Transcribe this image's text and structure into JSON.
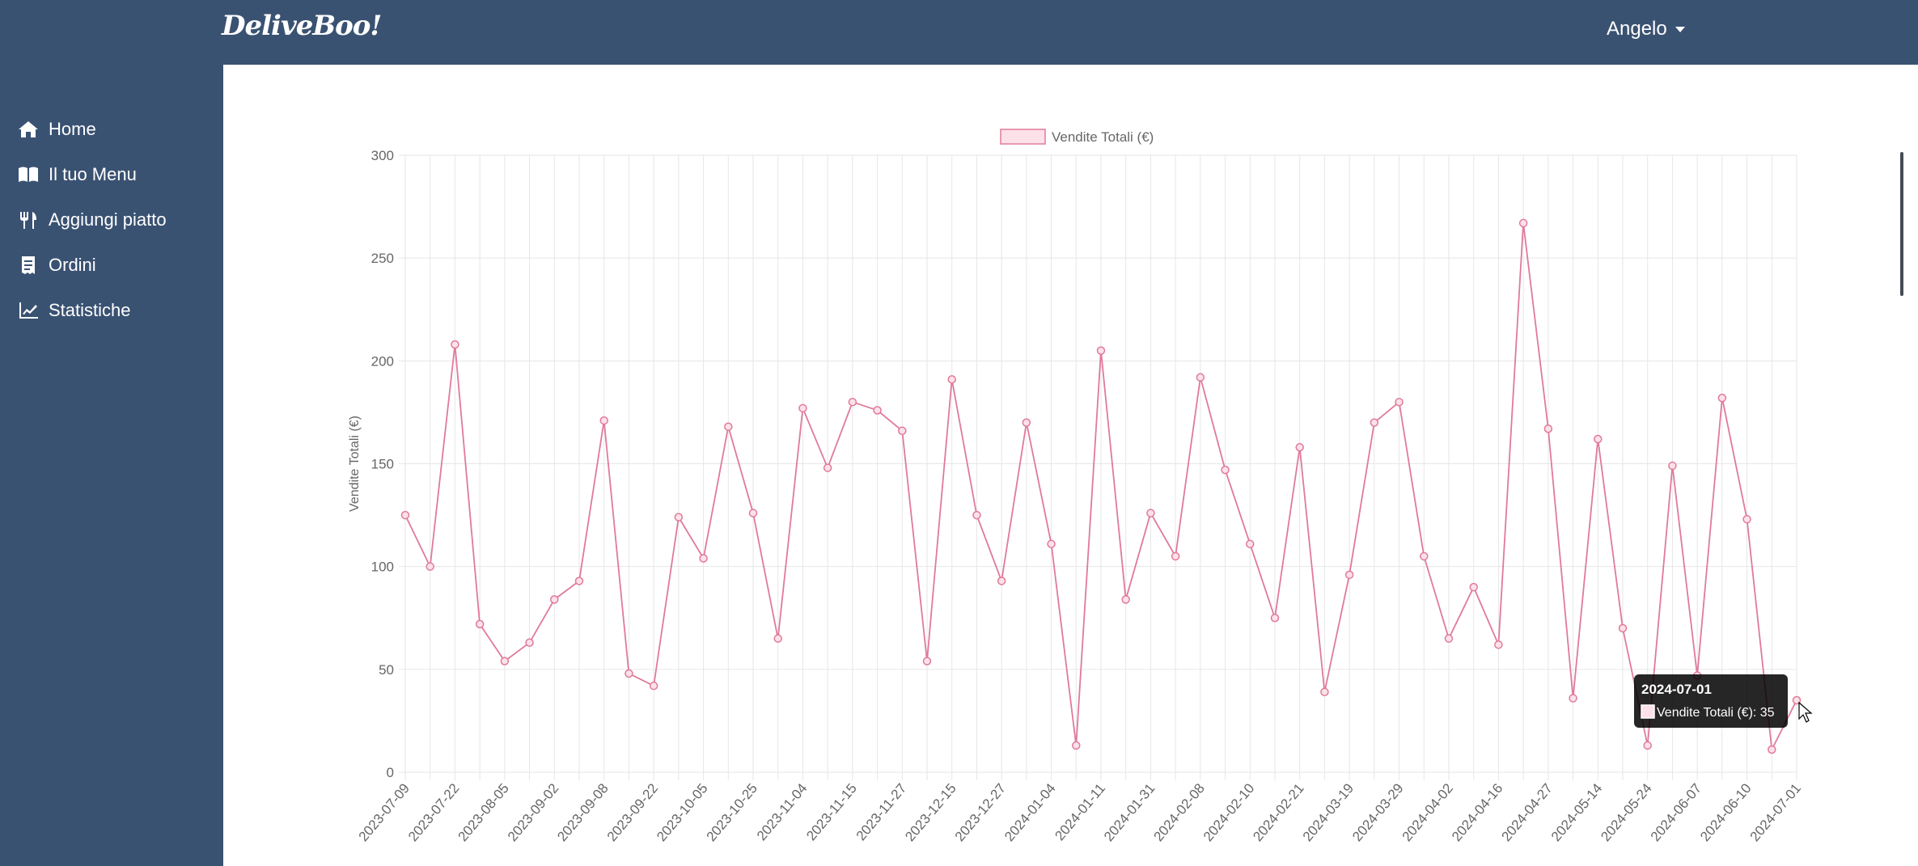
{
  "app": {
    "brand": "DeliveBoo!",
    "user_name": "Angelo"
  },
  "sidebar": {
    "items": [
      {
        "label": "Home",
        "icon": "home-icon"
      },
      {
        "label": "Il tuo Menu",
        "icon": "book-icon"
      },
      {
        "label": "Aggiungi piatto",
        "icon": "utensils-icon"
      },
      {
        "label": "Ordini",
        "icon": "receipt-icon"
      },
      {
        "label": "Statistiche",
        "icon": "chart-line-icon"
      }
    ]
  },
  "colors": {
    "nav_bg": "#3a5272",
    "series_line": "#e07a9a",
    "series_fill": "#fde1e8",
    "tooltip_bg": "#000000"
  },
  "tooltip": {
    "title": "2024-07-01",
    "body": "Vendite Totali (€): 35"
  },
  "chart_data": {
    "type": "line",
    "ylabel": "Vendite Totali (€)",
    "ylim": [
      0,
      300
    ],
    "yticks": [
      0,
      50,
      100,
      150,
      200,
      250,
      300
    ],
    "grid": true,
    "legend_position": "top",
    "x_tick_labels": [
      "2023-07-09",
      "2023-07-22",
      "2023-08-05",
      "2023-09-02",
      "2023-09-08",
      "2023-09-22",
      "2023-10-05",
      "2023-10-25",
      "2023-11-04",
      "2023-11-15",
      "2023-11-27",
      "2023-12-15",
      "2023-12-27",
      "2024-01-04",
      "2024-01-11",
      "2024-01-31",
      "2024-02-08",
      "2024-02-10",
      "2024-02-21",
      "2024-03-19",
      "2024-03-29",
      "2024-04-02",
      "2024-04-16",
      "2024-04-27",
      "2024-05-14",
      "2024-05-24",
      "2024-06-07",
      "2024-06-10",
      "2024-07-01"
    ],
    "series": [
      {
        "name": "Vendite Totali (€)",
        "values": [
          125,
          100,
          208,
          72,
          54,
          63,
          84,
          93,
          171,
          48,
          42,
          124,
          104,
          168,
          126,
          65,
          177,
          148,
          180,
          176,
          166,
          54,
          191,
          125,
          93,
          170,
          111,
          13,
          205,
          84,
          126,
          105,
          192,
          147,
          111,
          75,
          158,
          39,
          96,
          170,
          180,
          105,
          65,
          90,
          62,
          267,
          167,
          36,
          162,
          70,
          13,
          149,
          47,
          182,
          123,
          11,
          35
        ]
      }
    ]
  }
}
